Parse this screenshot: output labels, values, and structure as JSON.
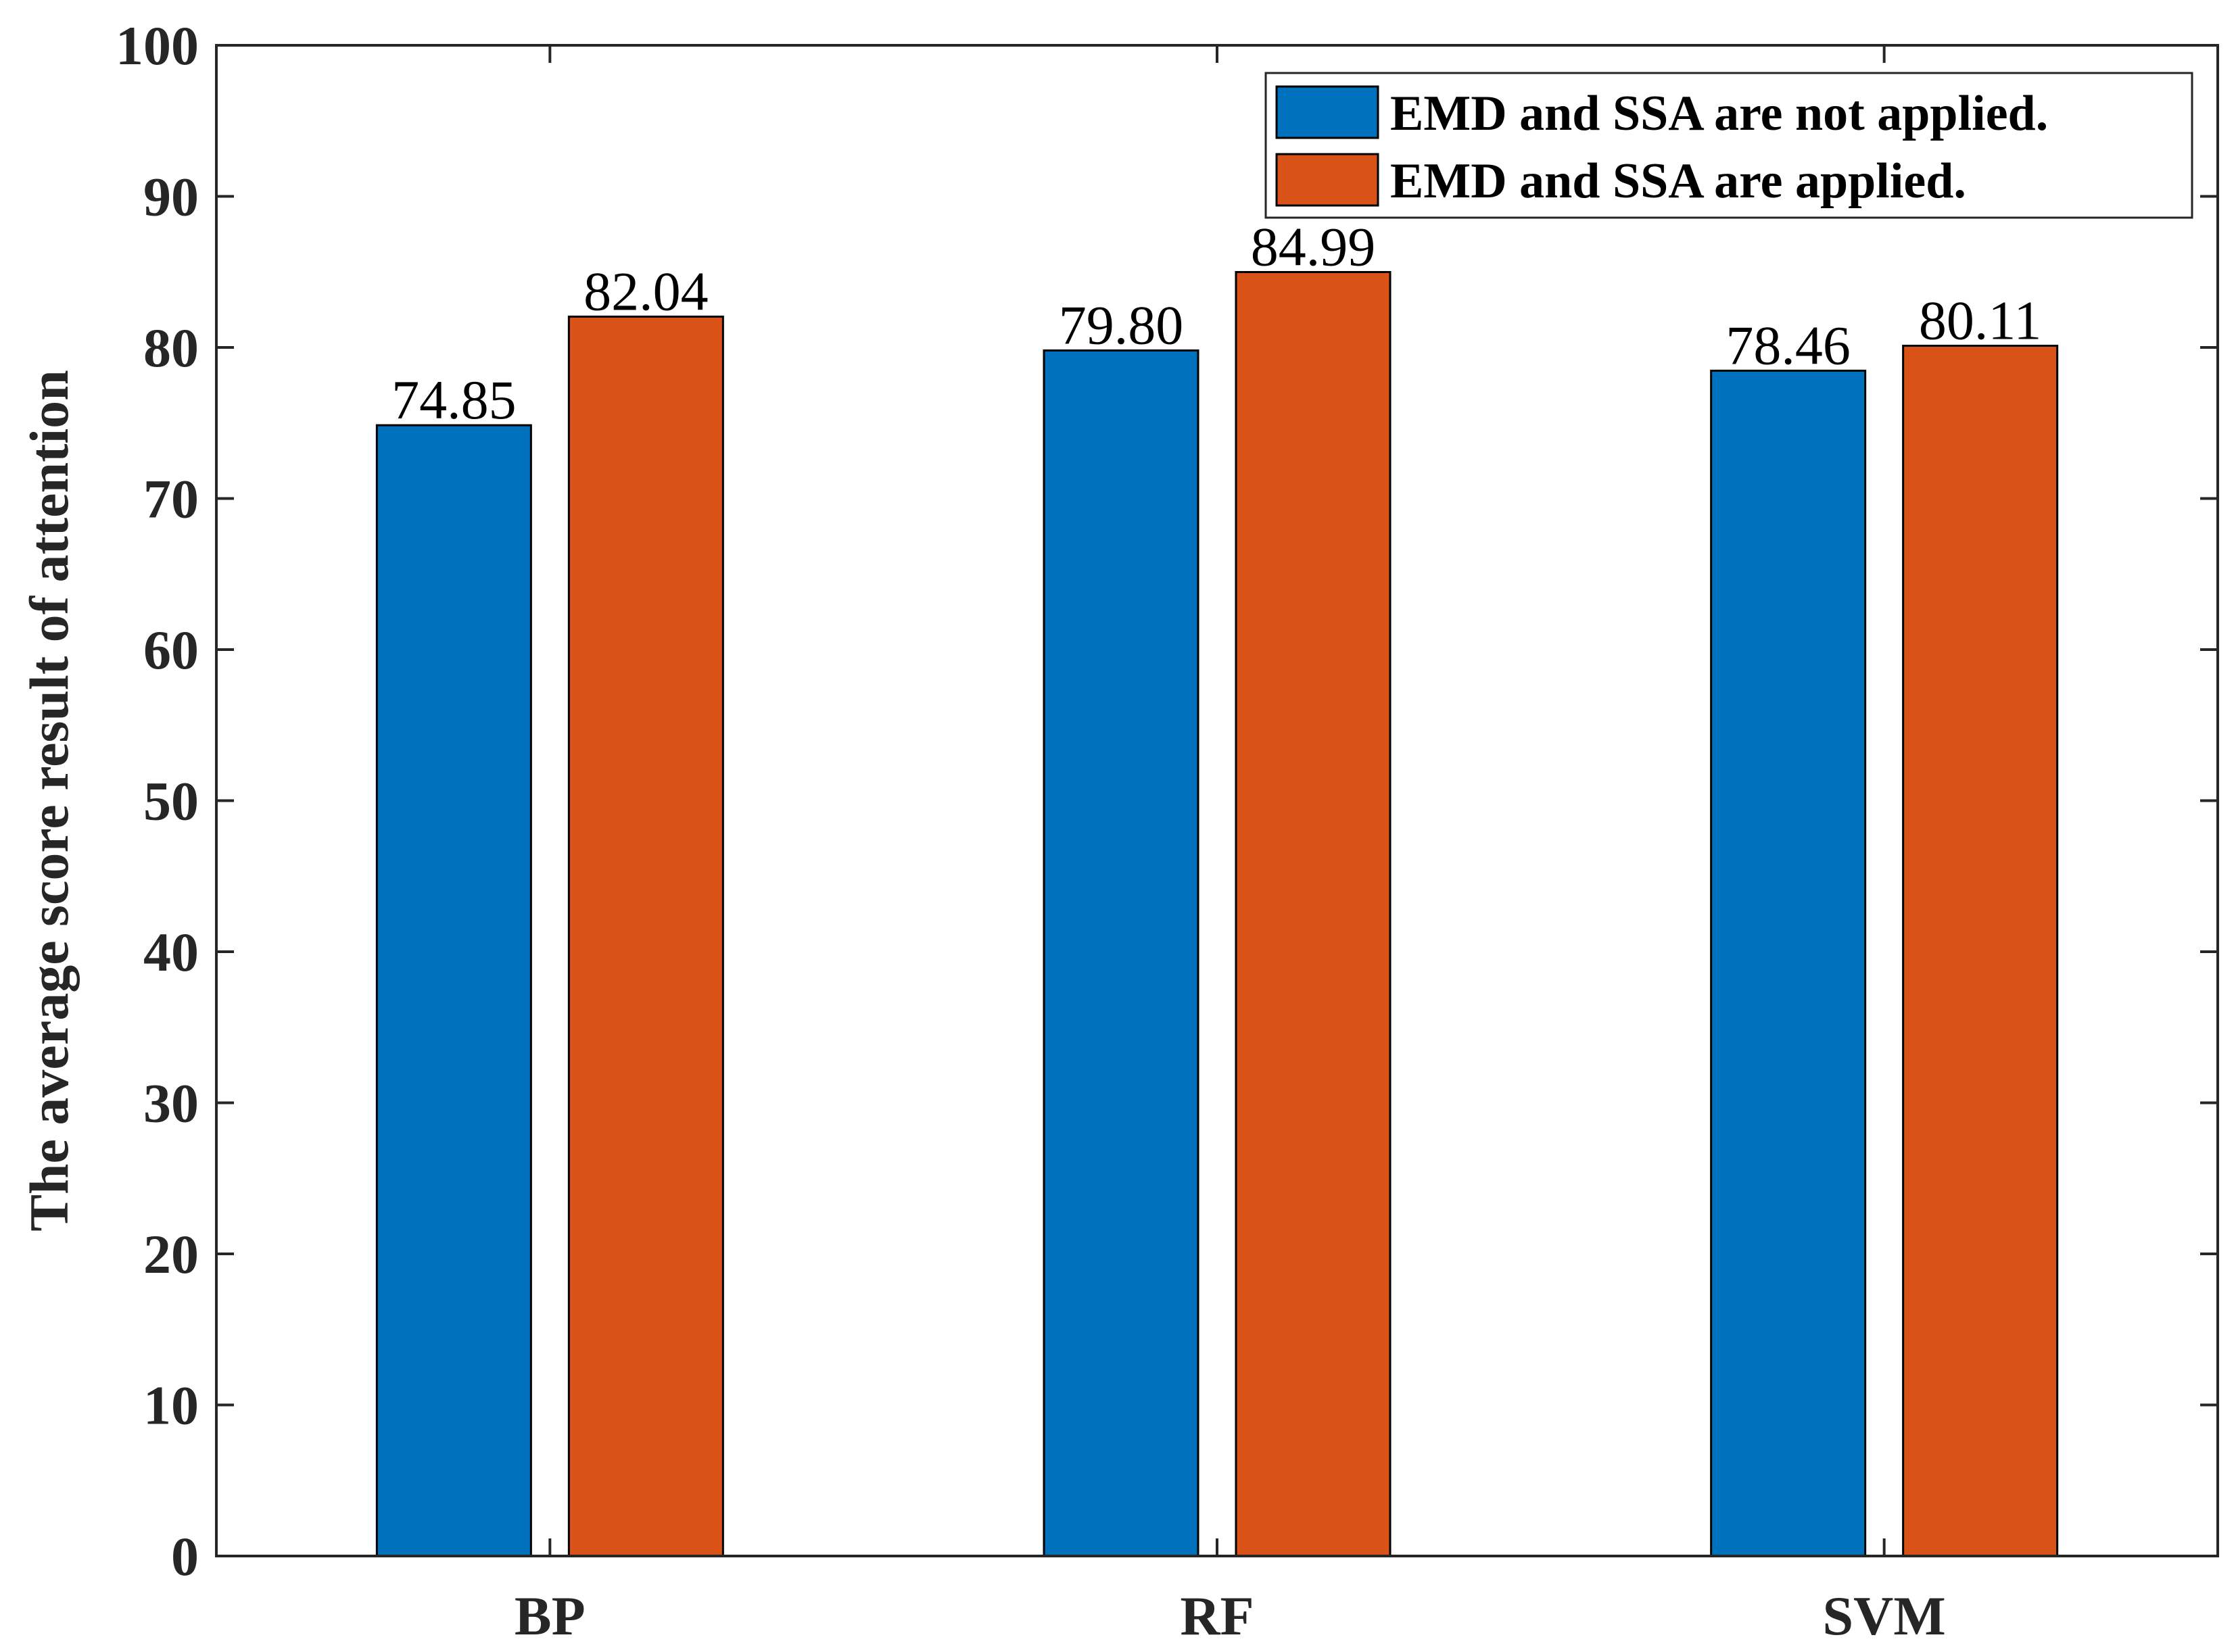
{
  "chart_data": {
    "type": "bar",
    "categories": [
      "BP",
      "RF",
      "SVM"
    ],
    "series": [
      {
        "name": "EMD and SSA are not applied.",
        "values": [
          74.85,
          79.8,
          78.46
        ],
        "labels": [
          "74.85",
          "79.80",
          "78.46"
        ],
        "color": "#0072BD"
      },
      {
        "name": "EMD and SSA are applied.",
        "values": [
          82.04,
          84.99,
          80.11
        ],
        "labels": [
          "82.04",
          "84.99",
          "80.11"
        ],
        "color": "#D95319"
      }
    ],
    "title": "",
    "xlabel": "",
    "ylabel": "The average score result of attention",
    "ylim": [
      0,
      100
    ],
    "yticks": [
      0,
      10,
      20,
      30,
      40,
      50,
      60,
      70,
      80,
      90,
      100
    ],
    "grid": false,
    "legend_position": "top-right",
    "box": true
  }
}
